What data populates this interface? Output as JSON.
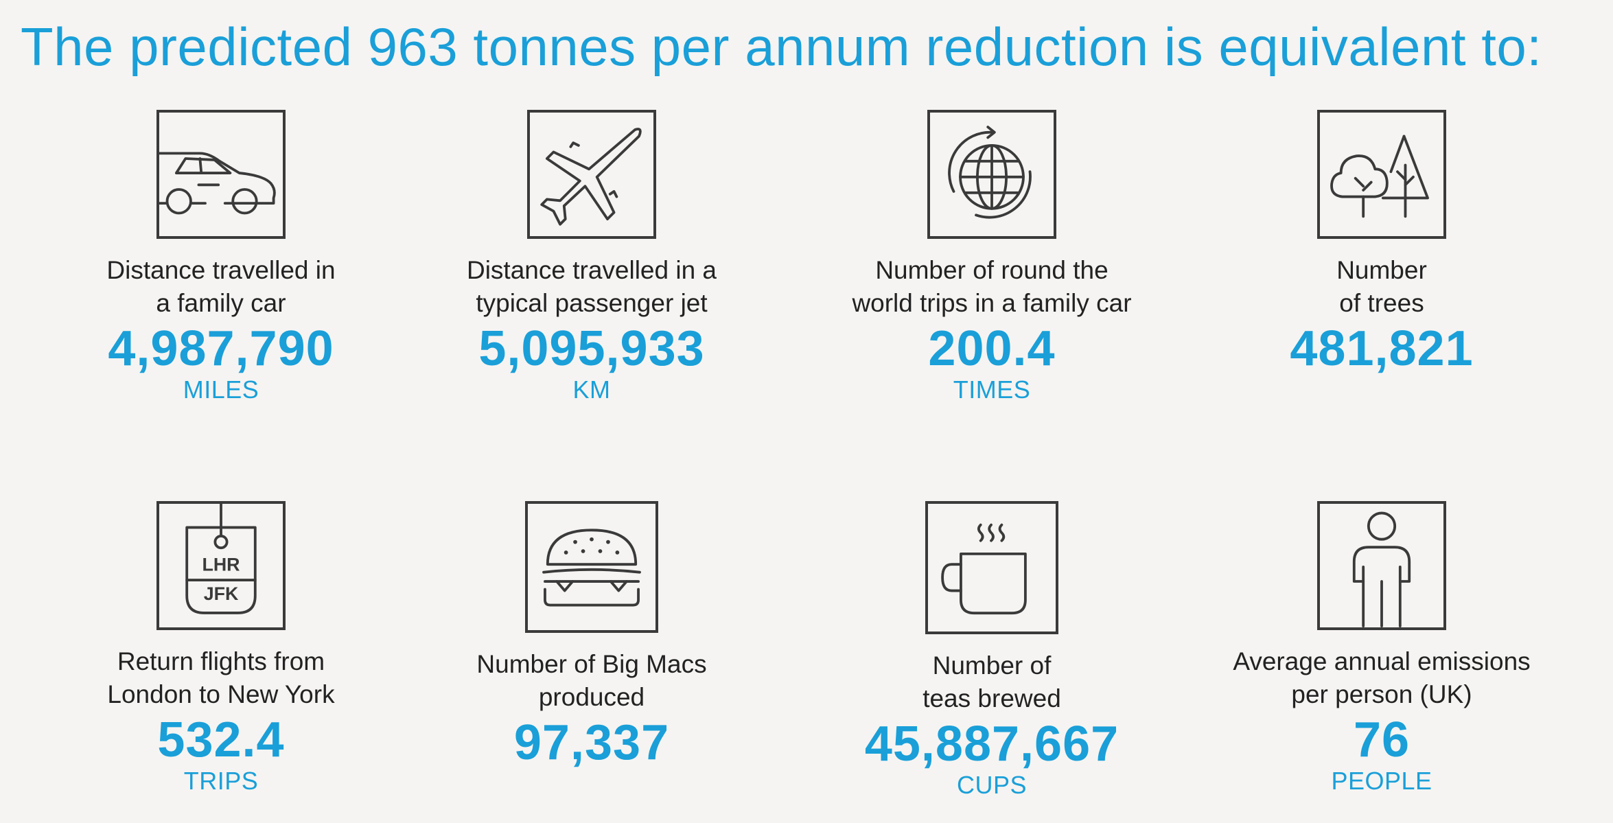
{
  "title": "The predicted 963 tonnes per annum reduction is equivalent to:",
  "colors": {
    "accent": "#1a9fd8",
    "text": "#222222",
    "icon_stroke": "#3a3a3a",
    "background": "#f5f4f2"
  },
  "items": [
    {
      "icon": "car-icon",
      "desc_line1": "Distance travelled in",
      "desc_line2": "a family car",
      "value": "4,987,790",
      "unit": "MILES"
    },
    {
      "icon": "airplane-icon",
      "desc_line1": "Distance travelled in a",
      "desc_line2": "typical passenger jet",
      "value": "5,095,933",
      "unit": "KM"
    },
    {
      "icon": "globe-icon",
      "desc_line1": "Number of round the",
      "desc_line2": "world trips in a family car",
      "value": "200.4",
      "unit": "TIMES"
    },
    {
      "icon": "trees-icon",
      "desc_line1": "Number",
      "desc_line2": "of trees",
      "value": "481,821",
      "unit": ""
    },
    {
      "icon": "luggage-tag-icon",
      "tag_top": "LHR",
      "tag_bottom": "JFK",
      "desc_line1": "Return flights from",
      "desc_line2": "London to New York",
      "value": "532.4",
      "unit": "TRIPS"
    },
    {
      "icon": "burger-icon",
      "desc_line1": "Number of Big Macs",
      "desc_line2": "produced",
      "value": "97,337",
      "unit": ""
    },
    {
      "icon": "tea-cup-icon",
      "desc_line1": "Number of",
      "desc_line2": "teas brewed",
      "value": "45,887,667",
      "unit": "CUPS"
    },
    {
      "icon": "person-icon",
      "desc_line1": "Average annual emissions",
      "desc_line2": "per person (UK)",
      "value": "76",
      "unit": "PEOPLE"
    }
  ]
}
